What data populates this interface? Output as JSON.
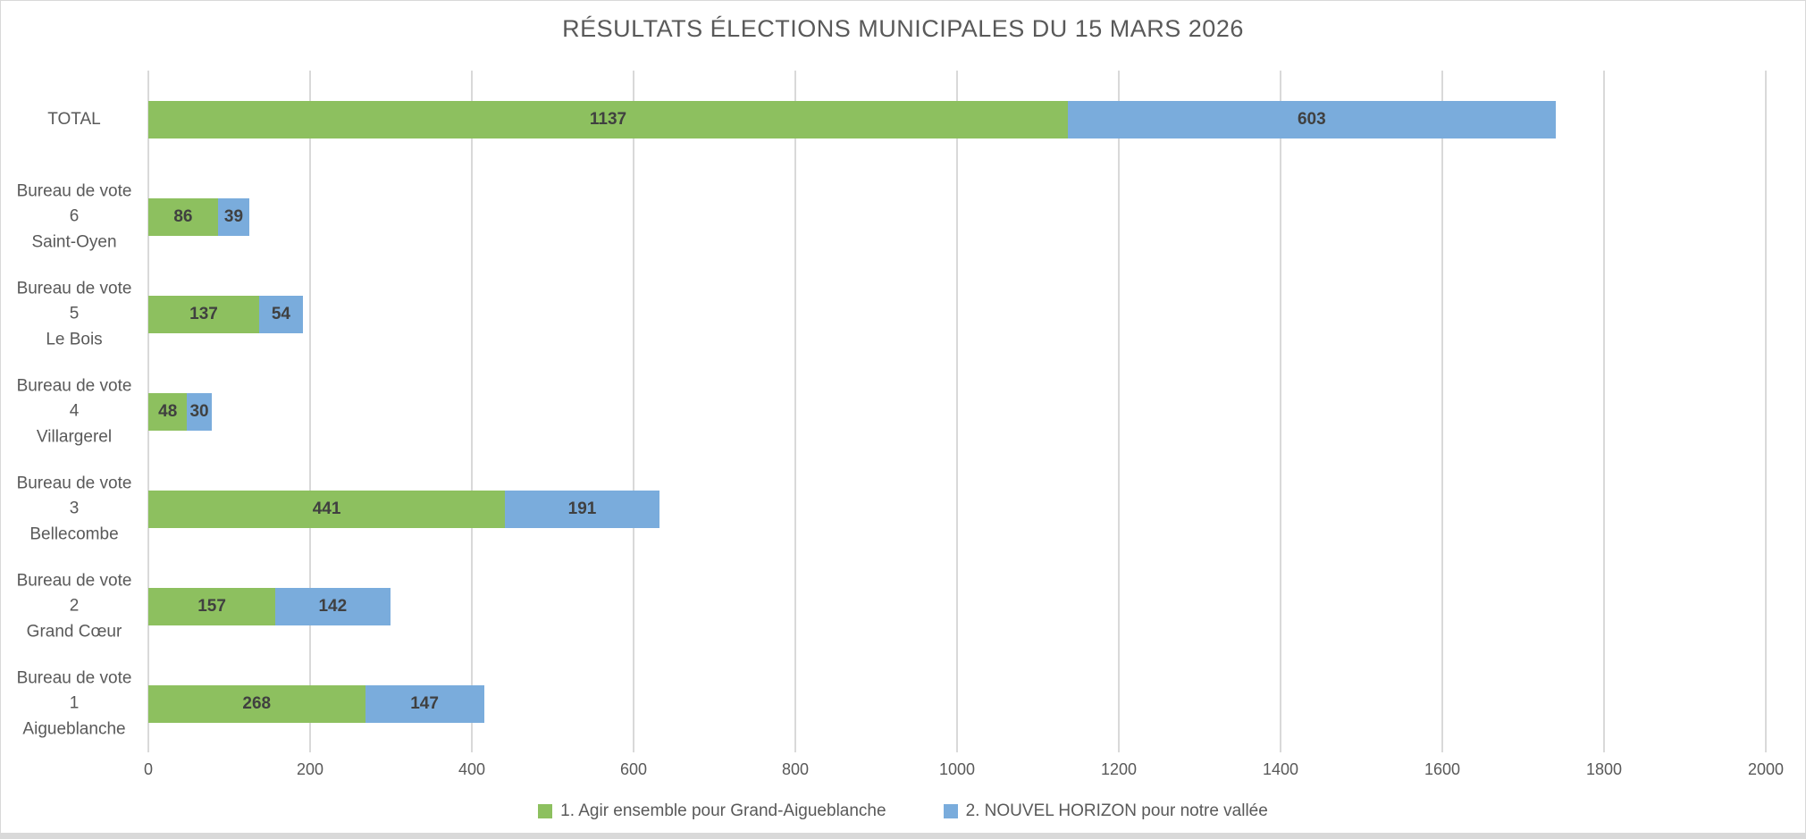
{
  "chart_data": {
    "type": "bar",
    "orientation": "horizontal-stacked",
    "title": "RÉSULTATS ÉLECTIONS MUNICIPALES DU 15 MARS 2026",
    "categories": [
      {
        "lines": [
          "TOTAL"
        ]
      },
      {
        "lines": [
          "Bureau de vote",
          "6",
          "Saint-Oyen"
        ]
      },
      {
        "lines": [
          "Bureau de vote",
          "5",
          "Le Bois"
        ]
      },
      {
        "lines": [
          "Bureau de vote",
          "4",
          "Villargerel"
        ]
      },
      {
        "lines": [
          "Bureau de vote",
          "3",
          "Bellecombe"
        ]
      },
      {
        "lines": [
          "Bureau de vote",
          "2",
          "Grand Cœur"
        ]
      },
      {
        "lines": [
          "Bureau de vote",
          "1",
          "Aigueblanche"
        ]
      }
    ],
    "series": [
      {
        "name": "1. Agir ensemble pour Grand-Aigueblanche",
        "color": "#8dc05f",
        "values": [
          1137,
          86,
          137,
          48,
          441,
          157,
          268
        ]
      },
      {
        "name": "2. NOUVEL HORIZON pour notre vallée",
        "color": "#7aacdc",
        "values": [
          603,
          39,
          54,
          30,
          191,
          142,
          147
        ]
      }
    ],
    "xlim": [
      0,
      2000
    ],
    "xticks": [
      0,
      200,
      400,
      600,
      800,
      1000,
      1200,
      1400,
      1600,
      1800,
      2000
    ],
    "grid": "vertical",
    "legend_position": "bottom",
    "value_labels": true,
    "colors": {
      "gridline": "#d9d9d9",
      "title_text": "#595959",
      "axis_text": "#595959",
      "value_text": "#404040",
      "border": "#d9d9d9"
    }
  }
}
